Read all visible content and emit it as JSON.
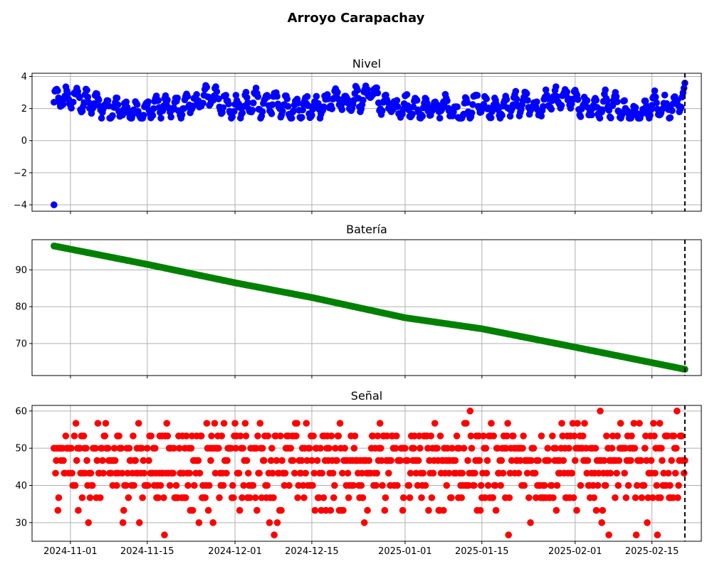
{
  "figure_title": "Arroyo Carapachay",
  "colors": {
    "nivel": "#0000ff",
    "bateria": "#008000",
    "senal": "#ff0000",
    "marker_line": "#000000",
    "grid": "#b0b0b0"
  },
  "chart_data": [
    {
      "type": "scatter",
      "title": "Nivel",
      "grid": true,
      "xlim": [
        "2024-10-25",
        "2025-02-24"
      ],
      "ylim": [
        -4.4,
        4.2
      ],
      "x_ticks": [
        "2024-11-01",
        "2024-11-15",
        "2024-12-01",
        "2024-12-15",
        "2025-01-01",
        "2025-01-15",
        "2025-02-01",
        "2025-02-15"
      ],
      "x_tick_labels_visible": false,
      "y_ticks": [
        -4,
        -2,
        0,
        2,
        4
      ],
      "y_tick_labels": [
        "−4",
        "−2",
        "0",
        "2",
        "4"
      ],
      "vline_date": "2025-02-21",
      "color": "#0000ff",
      "series": [
        {
          "x_start": "2024-10-29",
          "x_end": "2025-02-21",
          "y_range_typical": [
            1.4,
            3.6
          ],
          "y_mean": 2.2,
          "outlier": {
            "x": "2024-10-29",
            "y": -4.0
          }
        }
      ]
    },
    {
      "type": "scatter",
      "title": "Batería",
      "grid": true,
      "xlim": [
        "2024-10-25",
        "2025-02-24"
      ],
      "ylim": [
        61.3,
        98.2
      ],
      "x_ticks": [
        "2024-11-01",
        "2024-11-15",
        "2024-12-01",
        "2024-12-15",
        "2025-01-01",
        "2025-01-15",
        "2025-02-01",
        "2025-02-15"
      ],
      "x_tick_labels_visible": false,
      "y_ticks": [
        70,
        80,
        90
      ],
      "y_tick_labels": [
        "70",
        "80",
        "90"
      ],
      "vline_date": "2025-02-21",
      "color": "#008000",
      "series": [
        {
          "x": [
            "2024-10-29",
            "2024-11-15",
            "2024-12-01",
            "2024-12-15",
            "2025-01-01",
            "2025-01-15",
            "2025-02-01",
            "2025-02-21"
          ],
          "y": [
            96.5,
            91.5,
            86.5,
            82.5,
            77.0,
            74.0,
            69.0,
            63.0
          ]
        }
      ]
    },
    {
      "type": "scatter",
      "title": "Señal",
      "grid": true,
      "xlim": [
        "2024-10-25",
        "2025-02-24"
      ],
      "ylim": [
        25,
        61.5
      ],
      "x_ticks": [
        "2024-11-01",
        "2024-11-15",
        "2024-12-01",
        "2024-12-15",
        "2025-01-01",
        "2025-01-15",
        "2025-02-01",
        "2025-02-15"
      ],
      "x_tick_labels": [
        "2024-11-01",
        "2024-11-15",
        "2024-12-01",
        "2024-12-15",
        "2025-01-01",
        "2025-01-15",
        "2025-02-01",
        "2025-02-15"
      ],
      "y_ticks": [
        30,
        40,
        50,
        60
      ],
      "y_tick_labels": [
        "30",
        "40",
        "50",
        "60"
      ],
      "vline_date": "2025-02-21",
      "color": "#ff0000",
      "series": [
        {
          "x_start": "2024-10-29",
          "x_end": "2025-02-21",
          "levels": [
            26.7,
            30,
            33.3,
            36.7,
            40,
            43.3,
            46.7,
            50,
            53.3,
            56.7,
            60
          ],
          "level_weights": [
            0.3,
            1,
            3,
            7,
            11,
            13,
            14,
            14,
            10,
            3,
            0.3
          ]
        }
      ]
    }
  ]
}
